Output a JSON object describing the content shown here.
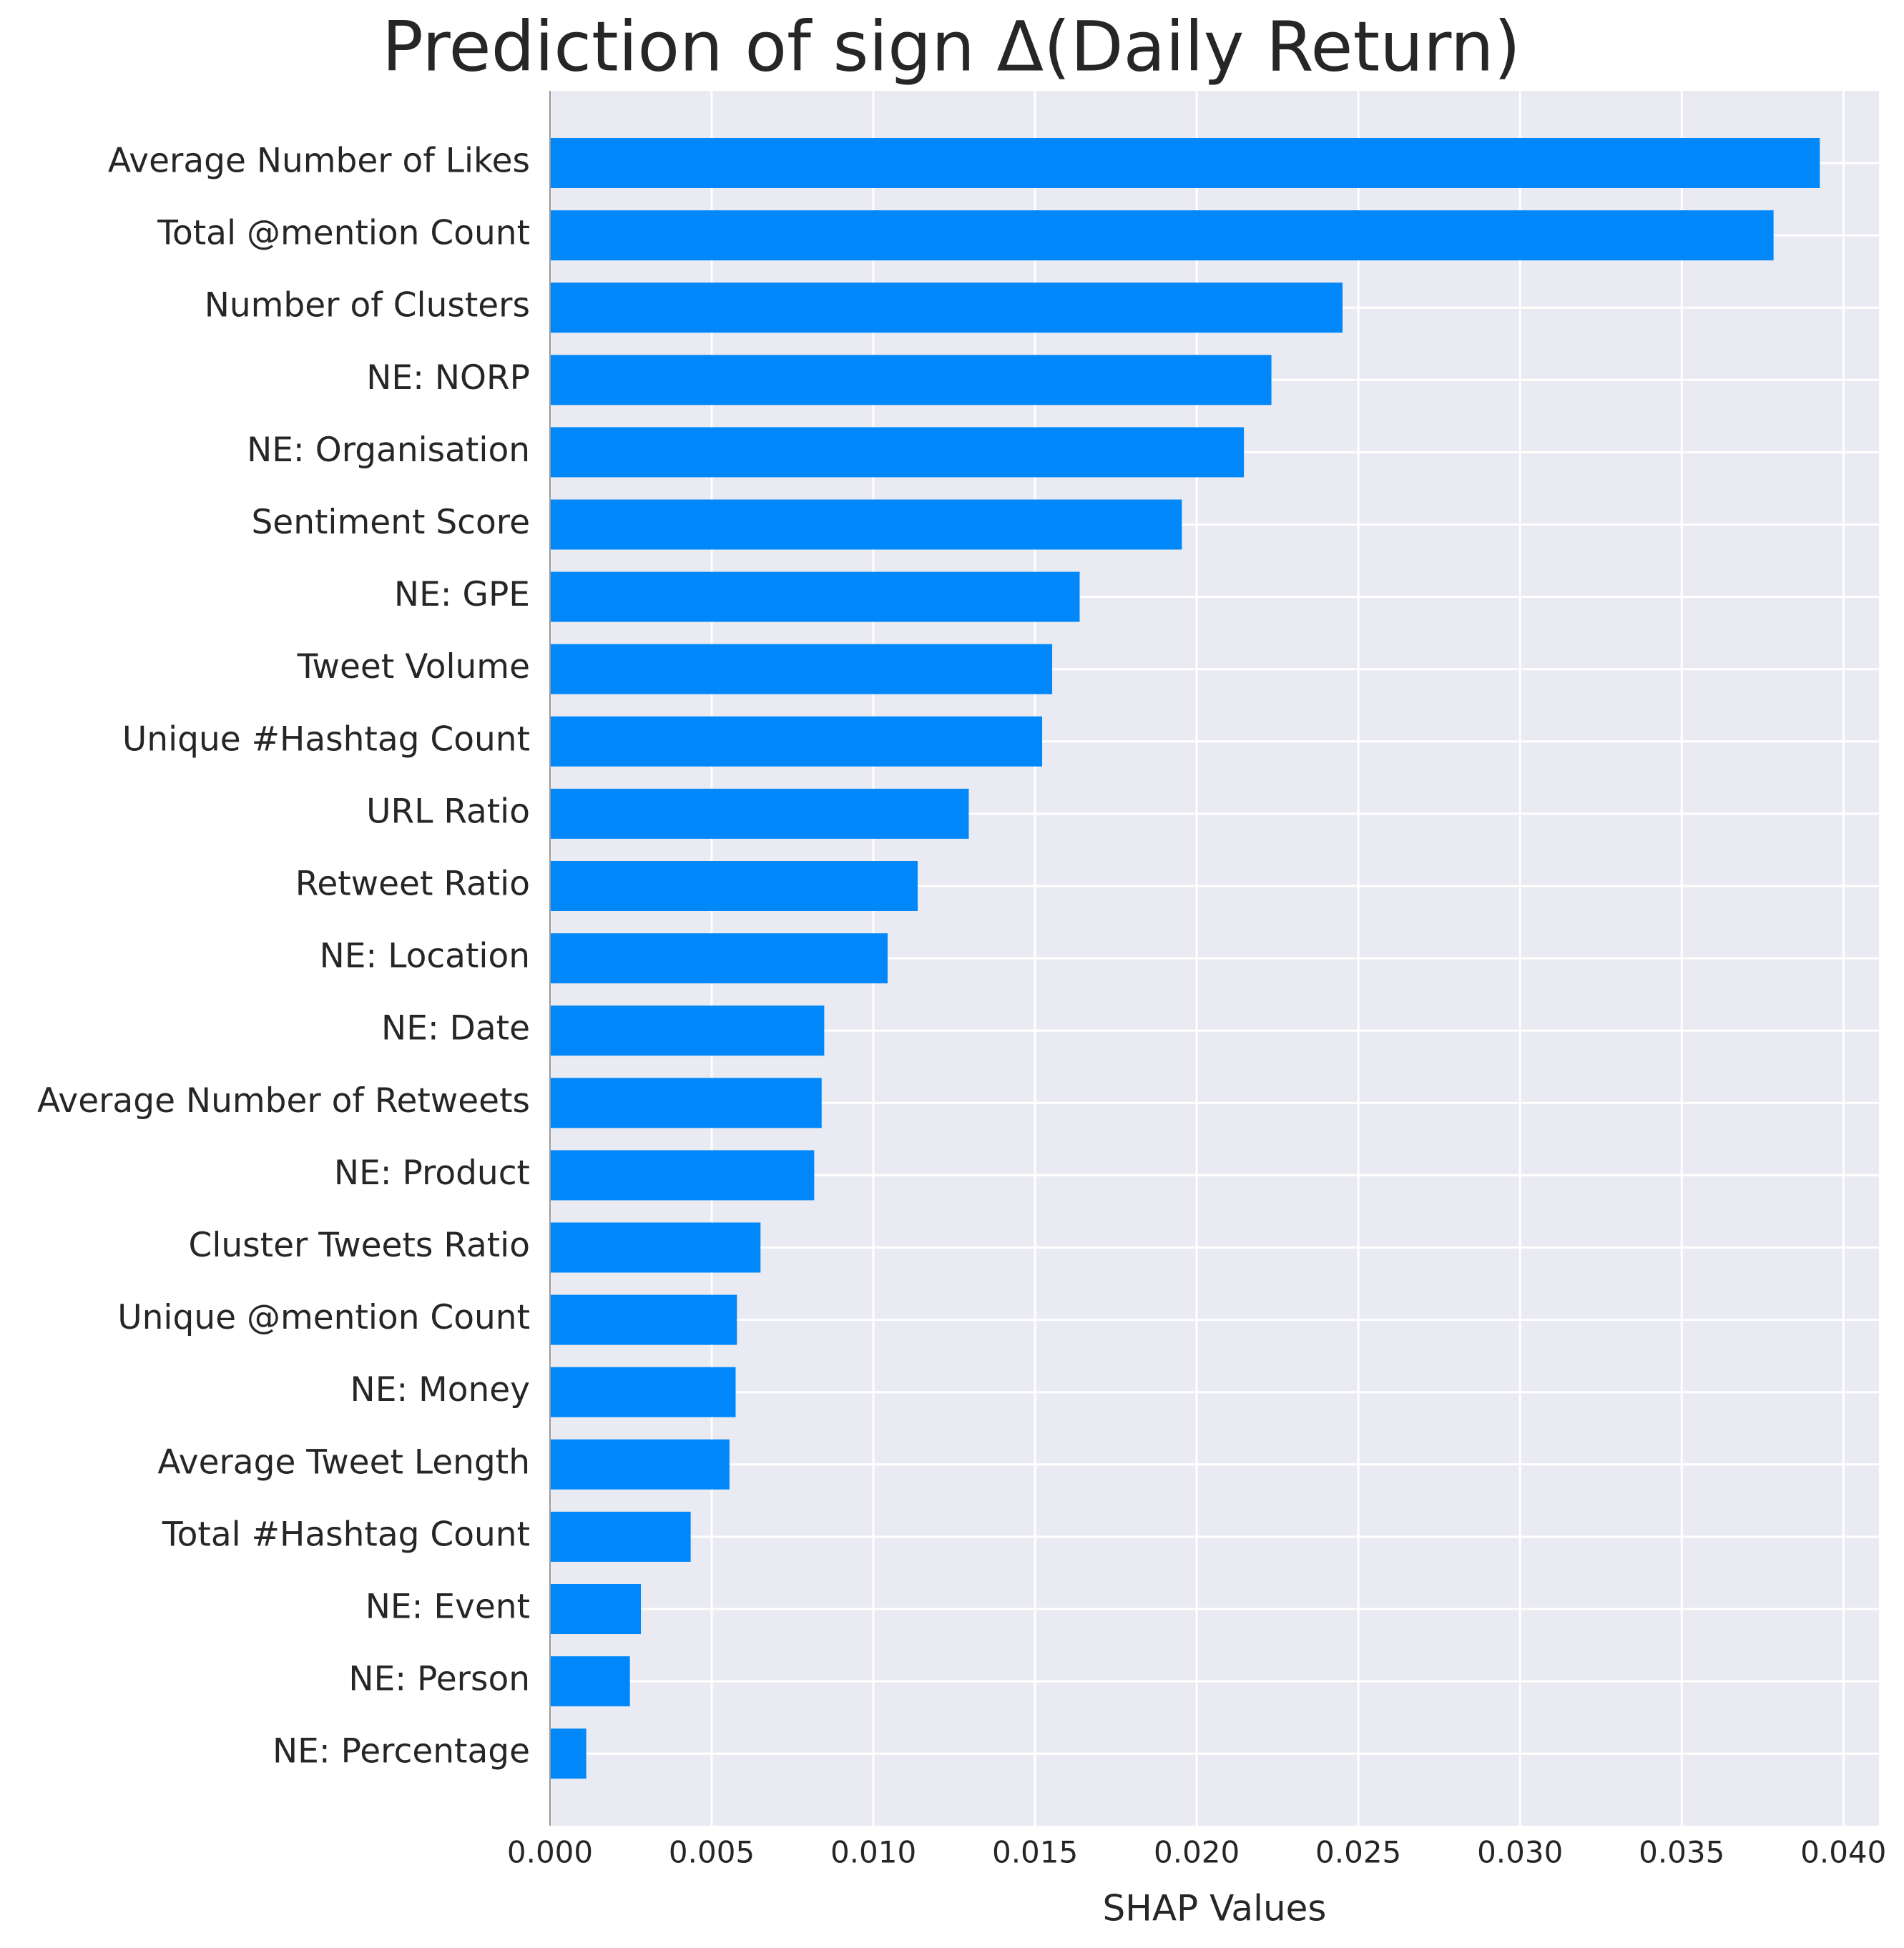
{
  "chart_data": {
    "type": "barh",
    "title": "Prediction of sign Δ(Daily Return)",
    "x_label": "SHAP Values",
    "categories": [
      "Average Number of Likes",
      "Total @mention Count",
      "Number of Clusters",
      "NE: NORP",
      "NE: Organisation",
      "Sentiment Score",
      "NE: GPE",
      "Tweet Volume",
      "Unique #Hashtag Count",
      "URL Ratio",
      "Retweet Ratio",
      "NE: Location",
      "NE: Date",
      "Average Number of Retweets",
      "NE: Product",
      "Cluster Tweets Ratio",
      "Unique @mention Count",
      "NE: Money",
      "Average Tweet Length",
      "Total #Hashtag Count",
      "NE: Event",
      "NE: Person",
      "NE: Percentage"
    ],
    "values": [
      0.03927,
      0.03784,
      0.02451,
      0.02231,
      0.02146,
      0.01954,
      0.01638,
      0.01553,
      0.01522,
      0.01295,
      0.01137,
      0.01044,
      0.00848,
      0.0084,
      0.00817,
      0.00651,
      0.00578,
      0.00574,
      0.00555,
      0.00435,
      0.00281,
      0.00247,
      0.00112
    ],
    "color": "#0088fa",
    "xlim": [
      0,
      0.0411
    ],
    "xticks": [
      {
        "value": 0,
        "label": "0.000"
      },
      {
        "value": 0.005,
        "label": "0.005"
      },
      {
        "value": 0.01,
        "label": "0.010"
      },
      {
        "value": 0.015,
        "label": "0.015"
      },
      {
        "value": 0.02,
        "label": "0.020"
      },
      {
        "value": 0.025,
        "label": "0.025"
      },
      {
        "value": 0.03,
        "label": "0.030"
      },
      {
        "value": 0.035,
        "label": "0.035"
      },
      {
        "value": 0.04,
        "label": "0.040"
      }
    ],
    "grid": true
  }
}
